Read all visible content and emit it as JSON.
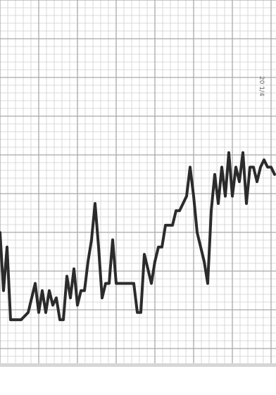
{
  "chart_data": {
    "type": "line",
    "title": "",
    "xlabel": "",
    "ylabel": "",
    "grid": true,
    "annotation": "20 1/4",
    "series": [
      {
        "color": "#2b2b2b",
        "x": [
          0,
          5,
          10,
          15,
          20,
          30,
          40,
          50,
          55,
          60,
          65,
          70,
          75,
          80,
          85,
          90,
          95,
          100,
          105,
          110,
          115,
          120,
          125,
          130,
          135,
          140,
          145,
          150,
          155,
          160,
          165,
          170,
          175,
          180,
          185,
          190,
          195,
          200,
          205,
          210,
          215,
          220,
          225,
          230,
          235,
          240,
          245,
          250,
          255,
          260,
          265,
          270,
          275,
          280,
          285,
          290,
          295,
          300,
          305,
          310,
          315,
          320,
          325,
          330,
          335,
          340,
          345,
          350,
          355,
          360,
          365,
          370,
          375,
          380,
          385,
          390
        ],
        "values": [
          36,
          20,
          32,
          12,
          12,
          12,
          14,
          22,
          14,
          20,
          14,
          20,
          16,
          18,
          12,
          12,
          24,
          18,
          26,
          16,
          20,
          20,
          28,
          34,
          44,
          32,
          18,
          22,
          22,
          34,
          22,
          22,
          22,
          22,
          22,
          22,
          14,
          14,
          30,
          26,
          22,
          28,
          32,
          32,
          38,
          38,
          38,
          42,
          42,
          44,
          46,
          54,
          46,
          36,
          32,
          28,
          22,
          42,
          52,
          44,
          54,
          46,
          58,
          46,
          54,
          50,
          58,
          44,
          54,
          54,
          50,
          54,
          56,
          54,
          54,
          52
        ]
      }
    ]
  }
}
